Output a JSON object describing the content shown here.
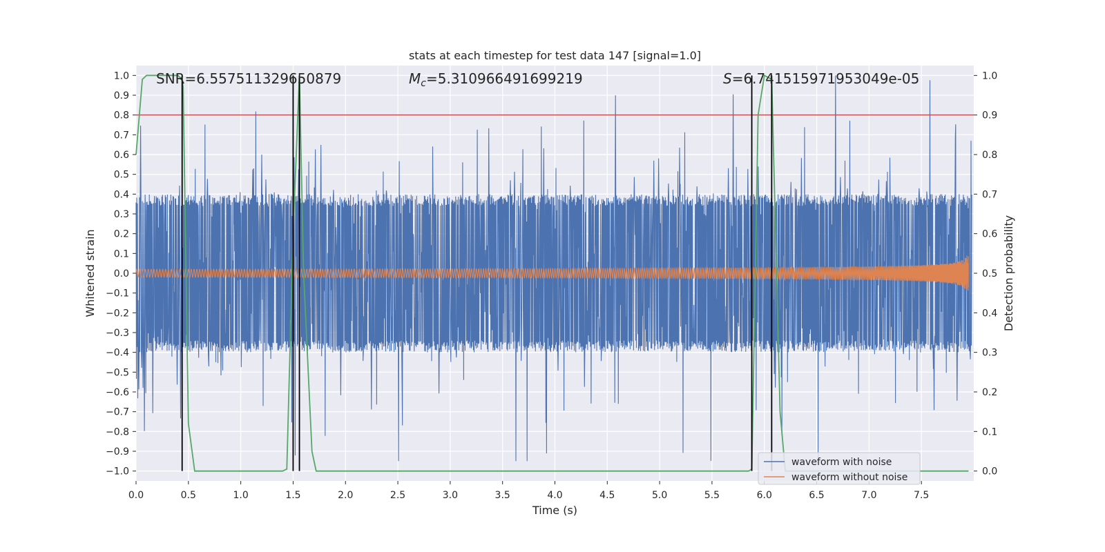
{
  "chart_data": {
    "type": "line",
    "title": "stats at each timestep for test data 147 [signal=1.0]",
    "xlabel": "Time (s)",
    "ylabel": "Whitened strain",
    "y2label": "Detection probability",
    "xlim": [
      0.0,
      8.0
    ],
    "ylim": [
      -1.05,
      1.05
    ],
    "y2lim": [
      -0.025,
      1.025
    ],
    "x_ticks": [
      0.0,
      0.5,
      1.0,
      1.5,
      2.0,
      2.5,
      3.0,
      3.5,
      4.0,
      4.5,
      5.0,
      5.5,
      6.0,
      6.5,
      7.0,
      7.5
    ],
    "x_tick_labels": [
      "0.0",
      "0.5",
      "1.0",
      "1.5",
      "2.0",
      "2.5",
      "3.0",
      "3.5",
      "4.0",
      "4.5",
      "5.0",
      "5.5",
      "6.0",
      "6.5",
      "7.0",
      "7.5"
    ],
    "y_ticks": [
      1.0,
      0.9,
      0.8,
      0.7,
      0.6,
      0.5,
      0.4,
      0.3,
      0.2,
      0.1,
      0.0,
      -0.1,
      -0.2,
      -0.3,
      -0.4,
      -0.5,
      -0.6,
      -0.7,
      -0.8,
      -0.9,
      -1.0
    ],
    "y_tick_labels": [
      "1.0",
      "0.9",
      "0.8",
      "0.7",
      "0.6",
      "0.5",
      "0.4",
      "0.3",
      "0.2",
      "0.1",
      "0.0",
      "−0.1",
      "−0.2",
      "−0.3",
      "−0.4",
      "−0.5",
      "−0.6",
      "−0.7",
      "−0.8",
      "−0.9",
      "−1.0"
    ],
    "y2_ticks": [
      1.0,
      0.9,
      0.8,
      0.7,
      0.6,
      0.5,
      0.4,
      0.3,
      0.2,
      0.1,
      0.0
    ],
    "y2_tick_labels": [
      "1.0",
      "0.9",
      "0.8",
      "0.7",
      "0.6",
      "0.5",
      "0.4",
      "0.3",
      "0.2",
      "0.1",
      "0.0"
    ],
    "grid": true,
    "legend_position": "bottom-right",
    "series": [
      {
        "name": "waveform with noise",
        "color": "#4c72b0",
        "description_values": {
          "band_amplitude": 0.4,
          "max": 1.0,
          "min": -0.95
        }
      },
      {
        "name": "waveform without noise",
        "color": "#dd8452",
        "description_values": {
          "start_amplitude": 0.02,
          "end_amplitude": 0.2,
          "end_x": 7.95
        }
      },
      {
        "name": "",
        "color": "#55a868",
        "axis": "right",
        "x": [
          0.0,
          0.06,
          0.1,
          0.15,
          0.4,
          0.44,
          0.45,
          0.5,
          0.56,
          1.4,
          1.44,
          1.5,
          1.56,
          1.6,
          1.68,
          1.72,
          5.85,
          5.88,
          5.94,
          6.0,
          6.07,
          6.15,
          6.2,
          7.95
        ],
        "values": [
          0.8,
          0.99,
          1.0,
          1.0,
          1.0,
          0.99,
          0.97,
          0.12,
          0.0,
          0.0,
          0.005,
          0.6,
          1.0,
          0.5,
          0.05,
          0.0,
          0.0,
          0.005,
          0.9,
          1.0,
          0.99,
          0.15,
          0.0,
          0.0
        ]
      }
    ],
    "threshold_line": {
      "axis": "right",
      "value": 0.9,
      "color": "#c44e52"
    },
    "vertical_markers": {
      "color": "#000000",
      "x": [
        0.44,
        1.5,
        1.56,
        5.88,
        6.07
      ],
      "y_range_right": [
        0.0,
        1.0
      ]
    },
    "annotations": {
      "snr_text": "SNR=6.557511329650879",
      "mc_symbol": "M",
      "mc_subscript": "c",
      "mc_value": "=5.310966491699219",
      "s_symbol": "S",
      "s_value": "=6.741515971953049e-05"
    }
  }
}
